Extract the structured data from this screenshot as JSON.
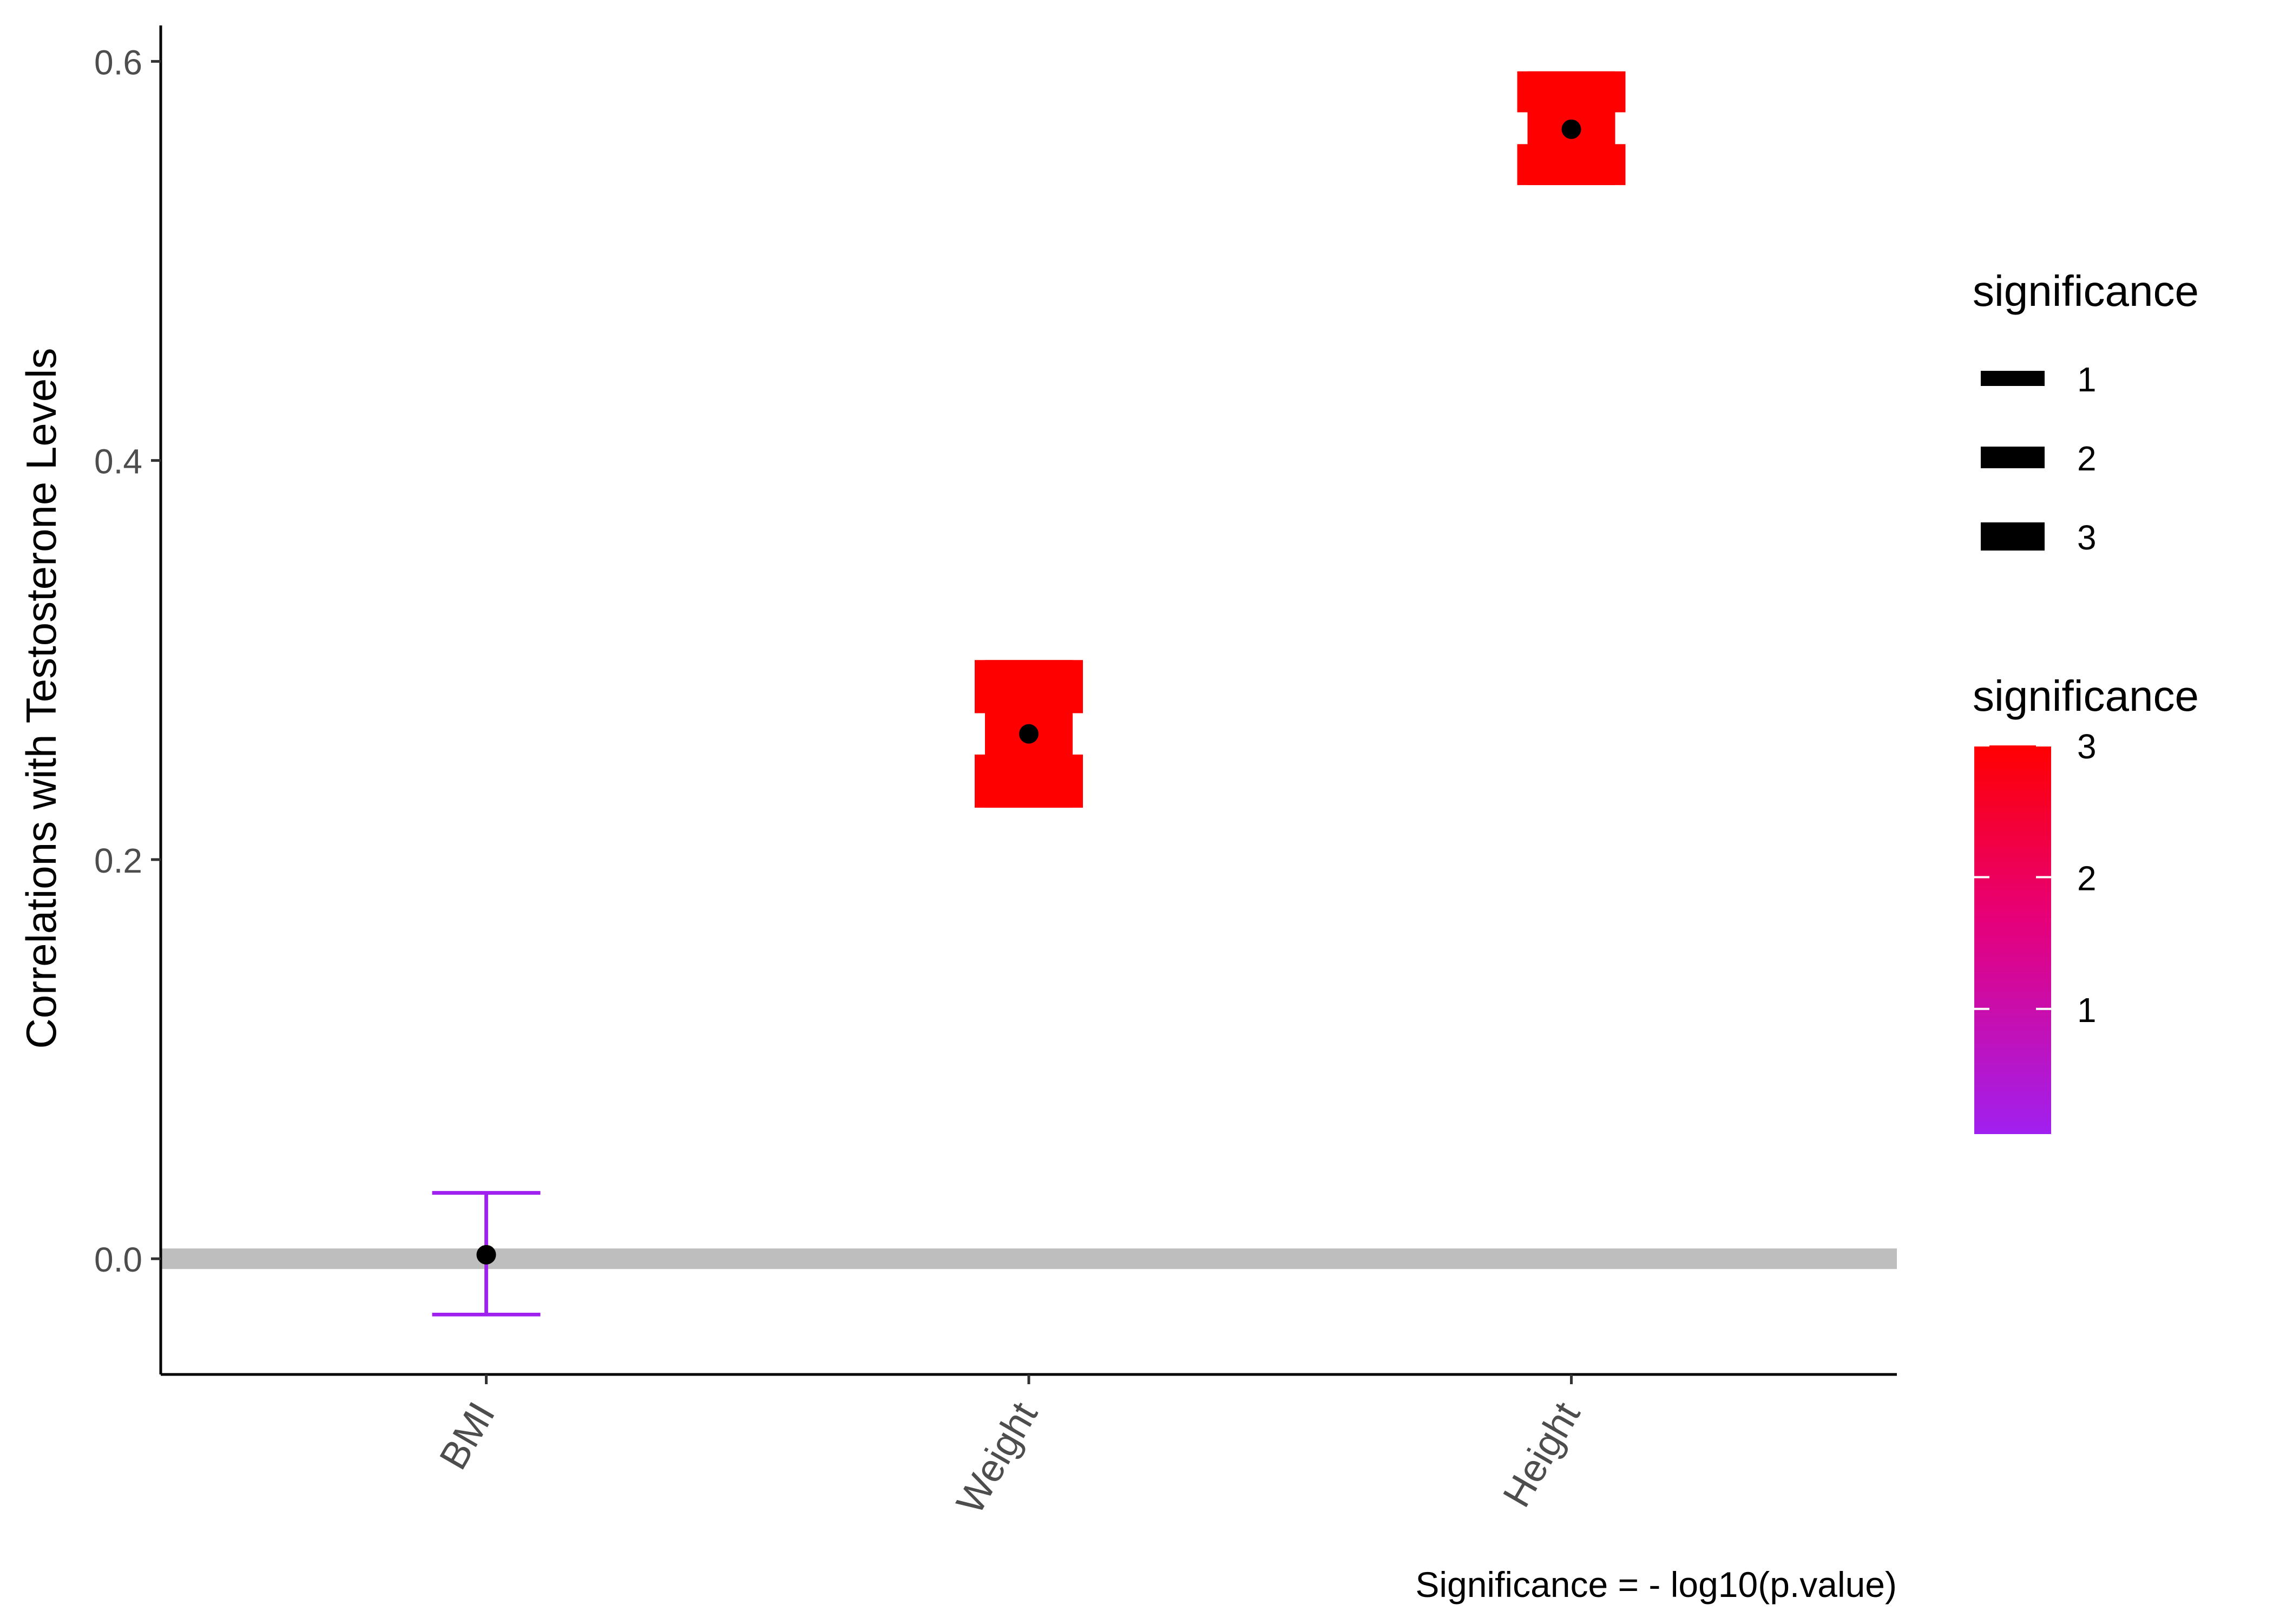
{
  "chart_data": {
    "type": "errorbar",
    "title": "",
    "xlabel": "",
    "ylabel": "Correlations with Testosterone Levels",
    "caption": "Significance = - log10(p.value)",
    "categories": [
      "BMI",
      "Weight",
      "Height"
    ],
    "estimate": [
      0.002,
      0.263,
      0.566
    ],
    "lower": [
      -0.028,
      0.226,
      0.538
    ],
    "upper": [
      0.033,
      0.3,
      0.595
    ],
    "significance": [
      0.05,
      3.0,
      3.0
    ],
    "ylim": [
      -0.058,
      0.618
    ],
    "yticks": [
      0.0,
      0.2,
      0.4,
      0.6
    ],
    "ytick_labels": [
      "0.0",
      "0.2",
      "0.4",
      "0.6"
    ],
    "reference_line": {
      "y": 0,
      "color": "#bebebe"
    },
    "grid": false,
    "legend_position": "right",
    "size_legend": {
      "title": "significance",
      "values": [
        1,
        2,
        3
      ],
      "labels": [
        "1",
        "2",
        "3"
      ]
    },
    "color_legend": {
      "title": "significance",
      "range": [
        0.05,
        3
      ],
      "ticks": [
        1,
        2,
        3
      ],
      "labels": [
        "1",
        "2",
        "3"
      ],
      "color_low": "#a020f0",
      "color_high": "#ff0000"
    },
    "point_color": "#000000"
  }
}
